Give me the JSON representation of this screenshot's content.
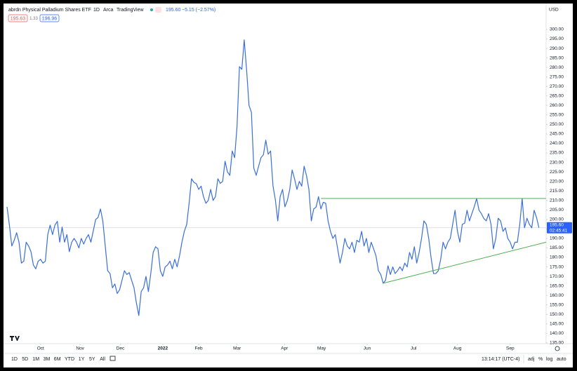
{
  "header": {
    "title": "abrdn Physical Palladium Shares ETF",
    "interval": "1D",
    "exchange": "Arca",
    "source": "TradingView",
    "quote": "195.60",
    "change": "−5.15 (−2.57%)",
    "bid": "195.63",
    "spread": "1.33",
    "ask": "196.96",
    "currency": "USD"
  },
  "toolbar": {
    "ranges": [
      "1D",
      "5D",
      "1M",
      "3M",
      "6M",
      "YTD",
      "1Y",
      "5Y",
      "All"
    ],
    "time": "13:14:17 (UTC-4)",
    "options": [
      "adj",
      "%",
      "log",
      "auto"
    ]
  },
  "chart_data": {
    "type": "line",
    "color": "#3a6fd8",
    "values": [
      206.6,
      197,
      186,
      189,
      193,
      188,
      177,
      178,
      188,
      186,
      183,
      176,
      174,
      178,
      179,
      177,
      178,
      192,
      197,
      192,
      197,
      199,
      188,
      196,
      188,
      192,
      183,
      188,
      190,
      188,
      185,
      190,
      187,
      190,
      192,
      188,
      194,
      200,
      201,
      205.5,
      199,
      186,
      173,
      171.5,
      164,
      166,
      161,
      163,
      168,
      173,
      171,
      172,
      168,
      164,
      156,
      149.4,
      162,
      164,
      170,
      162,
      171.5,
      182.6,
      185.6,
      184.5,
      173,
      170,
      175,
      176,
      178,
      174,
      179,
      175,
      180.8,
      188,
      193.7,
      197.4,
      208.5,
      221.4,
      219.5,
      218.8,
      215.8,
      217.5,
      212,
      208.5,
      210,
      215.8,
      210,
      212,
      221.4,
      219,
      220,
      230.6,
      225,
      223.2,
      236,
      232.5,
      249,
      280.4,
      279,
      294.5,
      278.6,
      260,
      256.4,
      227,
      223.2,
      228,
      232.5,
      234,
      241.7,
      234.3,
      236,
      217.7,
      210.3,
      199.2,
      212,
      215.8,
      206.6,
      210,
      215.8,
      226,
      221.4,
      215.8,
      220,
      217.5,
      228,
      223,
      215.8,
      199.2,
      205.5,
      206.5,
      212,
      205.5,
      209,
      208.5,
      199.2,
      193.7,
      190,
      192,
      184.5,
      177,
      182.6,
      190,
      186,
      184.5,
      188,
      182.6,
      189,
      188,
      193.7,
      186,
      190,
      182.6,
      188,
      184.5,
      180.8,
      173,
      171,
      166.4,
      168,
      175.6,
      171,
      175,
      171.5,
      173,
      175,
      173,
      177,
      175,
      182.6,
      179,
      185.6,
      177,
      182.6,
      190,
      199.2,
      197.4,
      190,
      179.7,
      171.5,
      171.5,
      173,
      179,
      188,
      184.5,
      188,
      190,
      197.4,
      204.8,
      193.7,
      188,
      197.4,
      198,
      204.8,
      199.2,
      203,
      206.6,
      211,
      204.8,
      203,
      200.5,
      199.2,
      203,
      197.4,
      184.5,
      190,
      200.6,
      199.2,
      193.7,
      195.5,
      190,
      188,
      184.5,
      188,
      188,
      197.4,
      211,
      195.6,
      200.6,
      197.4,
      195.6,
      204.8,
      201,
      195.6
    ],
    "xlim": [
      0,
      225
    ],
    "xticks": [
      {
        "value": 14,
        "label": "Oct"
      },
      {
        "value": 30.5,
        "label": "Nov"
      },
      {
        "value": 47.3,
        "label": "Dec"
      },
      {
        "value": 65,
        "label": "2022"
      },
      {
        "value": 80,
        "label": "Feb"
      },
      {
        "value": 96,
        "label": "Mar"
      },
      {
        "value": 115.8,
        "label": "Apr"
      },
      {
        "value": 131.3,
        "label": "May"
      },
      {
        "value": 150.3,
        "label": "Jun"
      },
      {
        "value": 169.7,
        "label": "Jul"
      },
      {
        "value": 188,
        "label": "Aug"
      },
      {
        "value": 210,
        "label": "Sep"
      }
    ],
    "ylim": [
      134.6,
      308.1
    ],
    "yticks": [
      {
        "value": 135,
        "label": "135.00"
      },
      {
        "value": 140,
        "label": "140.00"
      },
      {
        "value": 145,
        "label": "145.00"
      },
      {
        "value": 150,
        "label": "150.00"
      },
      {
        "value": 155,
        "label": "155.00"
      },
      {
        "value": 160,
        "label": "160.00"
      },
      {
        "value": 165,
        "label": "165.00"
      },
      {
        "value": 170,
        "label": "170.00"
      },
      {
        "value": 175,
        "label": "175.00"
      },
      {
        "value": 180,
        "label": "180.00"
      },
      {
        "value": 185,
        "label": "185.00"
      },
      {
        "value": 190,
        "label": "190.00"
      },
      {
        "value": 195,
        "label": "195.00"
      },
      {
        "value": 200,
        "label": "200.00"
      },
      {
        "value": 205,
        "label": "205.00"
      },
      {
        "value": 210,
        "label": "210.00"
      },
      {
        "value": 215,
        "label": "215.00"
      },
      {
        "value": 220,
        "label": "220.00"
      },
      {
        "value": 225,
        "label": "225.00"
      },
      {
        "value": 230,
        "label": "230.00"
      },
      {
        "value": 235,
        "label": "235.00"
      },
      {
        "value": 240,
        "label": "240.00"
      },
      {
        "value": 245,
        "label": "245.00"
      },
      {
        "value": 250,
        "label": "250.00"
      },
      {
        "value": 255,
        "label": "255.00"
      },
      {
        "value": 260,
        "label": "260.00"
      },
      {
        "value": 265,
        "label": "265.00"
      },
      {
        "value": 270,
        "label": "270.00"
      },
      {
        "value": 275,
        "label": "275.00"
      },
      {
        "value": 280,
        "label": "280.00"
      },
      {
        "value": 285,
        "label": "285.00"
      },
      {
        "value": 290,
        "label": "290.00"
      },
      {
        "value": 295,
        "label": "295.00"
      },
      {
        "value": 300,
        "label": "300.00"
      }
    ],
    "last_price": {
      "value": 195.6,
      "label": "195.60",
      "countdown": "02:45:41"
    },
    "trendlines": [
      {
        "color": "#4caf50",
        "x": [
          131,
          225
        ],
        "y": [
          211,
          211
        ]
      },
      {
        "color": "#4caf50",
        "x": [
          157,
          225
        ],
        "y": [
          166.4,
          188
        ]
      }
    ]
  }
}
